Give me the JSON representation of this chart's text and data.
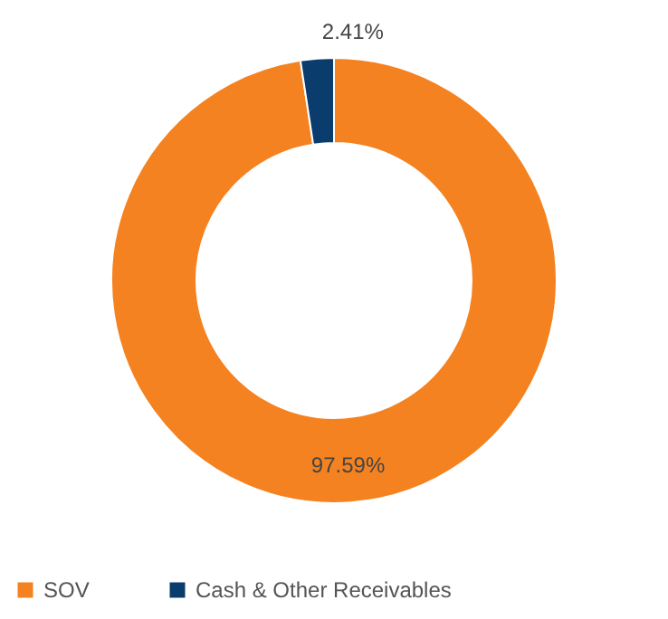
{
  "chart_data": {
    "type": "donut",
    "categories": [
      "SOV",
      "Cash & Other Receivables"
    ],
    "values": [
      97.59,
      2.41
    ],
    "colors": [
      "#f58220",
      "#0b3c6e"
    ],
    "value_labels": [
      "97.59%",
      "2.41%"
    ],
    "legend": "bottom"
  }
}
